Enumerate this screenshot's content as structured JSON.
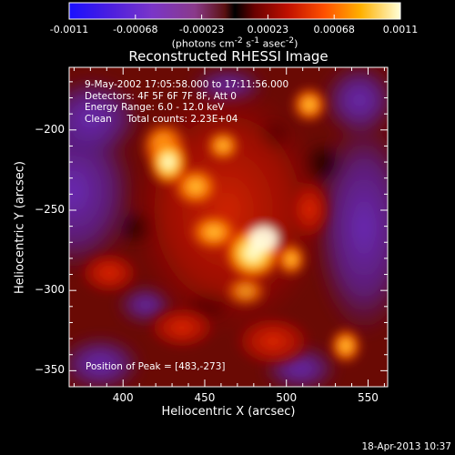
{
  "colorbar": {
    "tick_labels": [
      "-0.0011",
      "-0.00068",
      "-0.00023",
      "0.00023",
      "0.00068",
      "0.0011"
    ],
    "units_html": "(photons cm<sup>-2</sup> s<sup>-1</sup> asec<sup>-2</sup>)",
    "min": -0.0011,
    "max": 0.0011
  },
  "plot": {
    "title": "Reconstructed RHESSI Image",
    "annotation_lines": [
      "9-May-2002 17:05:58.000 to 17:11:56.000",
      "Detectors: 4F 5F 6F 7F 8F, Att 0",
      "Energy Range: 6.0 - 12.0 keV",
      "Clean     Total counts: 2.23E+04"
    ],
    "peak_label": "Position of Peak = [483,-273]",
    "xlabel": "Heliocentric X (arcsec)",
    "ylabel": "Heliocentric Y (arcsec)",
    "x_ticks": [
      "400",
      "450",
      "500",
      "550"
    ],
    "y_ticks": [
      "-200",
      "-250",
      "-300",
      "-350"
    ],
    "x_range": [
      367,
      562
    ],
    "y_range": [
      -360,
      -161
    ],
    "peak_position": [
      483,
      -273
    ]
  },
  "footer": {
    "timestamp": "18-Apr-2013 10:37"
  }
}
